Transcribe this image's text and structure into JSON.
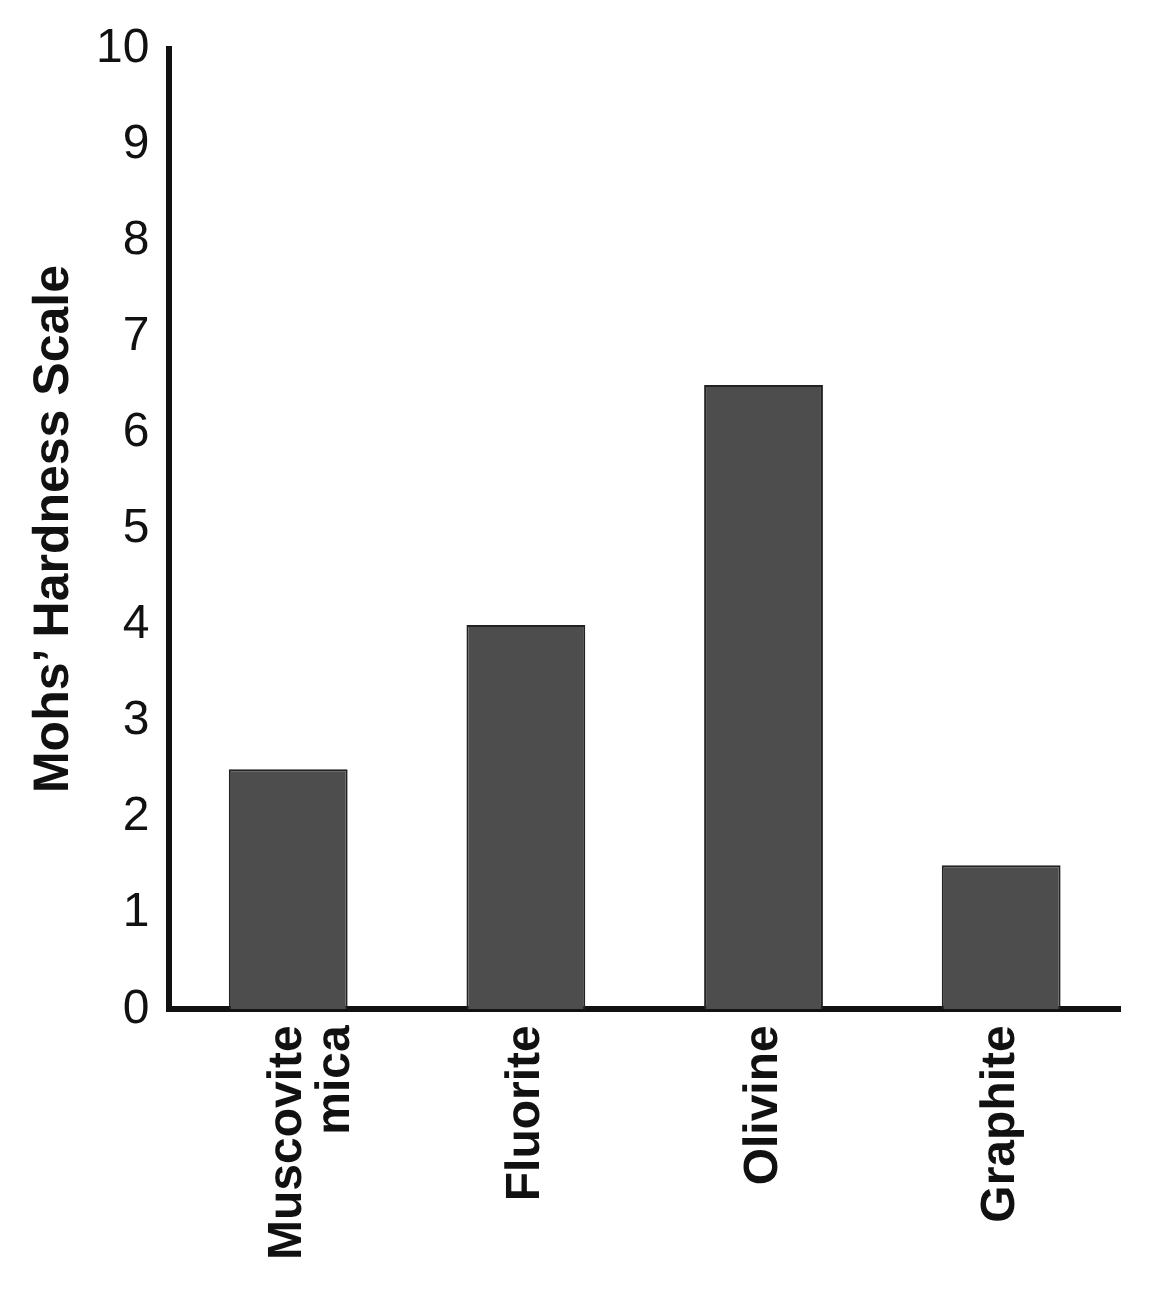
{
  "chart_data": {
    "type": "bar",
    "ylabel": "Mohs’ Hardness Scale",
    "categories": [
      "Muscovite mica",
      "Fluorite",
      "Olivine",
      "Graphite"
    ],
    "values": [
      2.5,
      4,
      6.5,
      1.5
    ],
    "color": "#4d4d4d",
    "ylim": [
      0,
      10
    ],
    "yticks": [
      0,
      1,
      2,
      3,
      4,
      5,
      6,
      7,
      8,
      9,
      10
    ],
    "grid": false,
    "legend": false
  }
}
